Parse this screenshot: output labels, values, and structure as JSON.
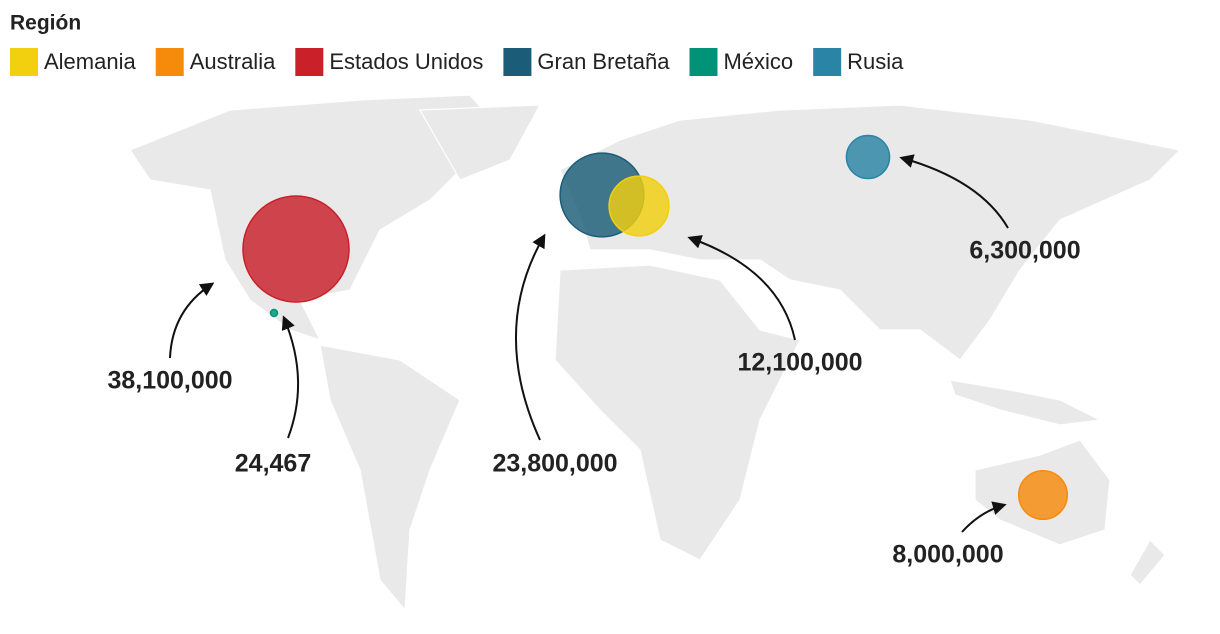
{
  "legend_title": "Región",
  "series": [
    {
      "name": "Alemania",
      "color": "#f2cf0f",
      "value": 12100000,
      "value_label": "12,100,000"
    },
    {
      "name": "Australia",
      "color": "#f68b0b",
      "value": 8000000,
      "value_label": "8,000,000"
    },
    {
      "name": "Estados Unidos",
      "color": "#c9202a",
      "value": 38100000,
      "value_label": "38,100,000"
    },
    {
      "name": "Gran Bretaña",
      "color": "#1b5d78",
      "value": 23800000,
      "value_label": "23,800,000"
    },
    {
      "name": "México",
      "color": "#009377",
      "value": 24467,
      "value_label": "24,467"
    },
    {
      "name": "Rusia",
      "color": "#2a84a6",
      "value": 6300000,
      "value_label": "6,300,000"
    }
  ]
}
